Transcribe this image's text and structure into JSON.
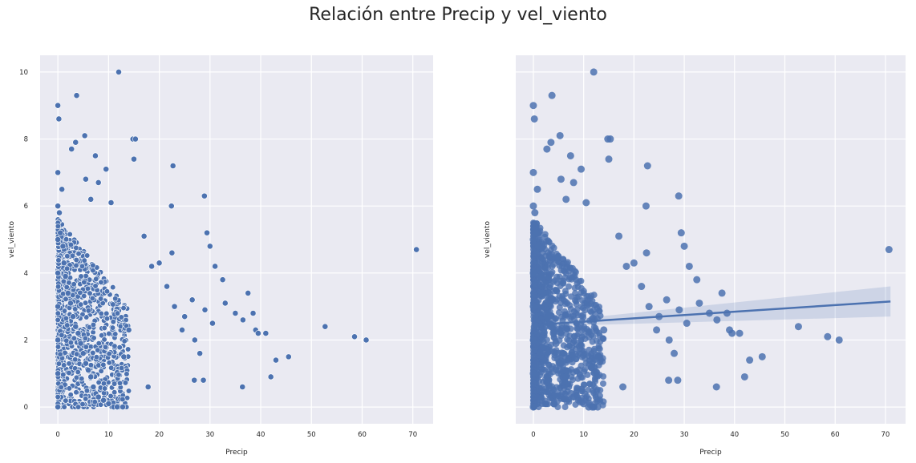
{
  "title": "Relación entre Precip y vel_viento",
  "chart_data": [
    {
      "type": "scatter",
      "xlabel": "Precip",
      "ylabel": "vel_viento",
      "xlim": [
        -3.5,
        74
      ],
      "ylim": [
        -0.5,
        10.5
      ],
      "xticks": [
        0,
        10,
        20,
        30,
        40,
        50,
        60,
        70
      ],
      "yticks": [
        0,
        2,
        4,
        6,
        8,
        10
      ],
      "grid": true,
      "marker_color": "#4c72b0",
      "background": "#eaeaf2",
      "x": [
        0.0,
        0.0,
        0.0,
        0.0,
        0.0,
        0.0,
        0.0,
        0.0,
        0.0,
        0.2,
        0.3,
        0.5,
        0.8,
        1.0,
        1.2,
        1.5,
        2.0,
        2.5,
        3.0,
        3.5,
        4.0,
        4.5,
        5.0,
        5.5,
        6.0,
        6.5,
        7.0,
        7.5,
        8.0,
        9.0,
        10.0,
        11.0,
        12.0,
        12.0,
        13.0,
        14.0,
        14.8,
        15.3,
        15.0,
        3.7,
        5.3,
        7.4,
        2.7,
        3.5,
        5.5,
        8.0,
        9.5,
        6.5,
        10.5,
        22.7,
        22.4,
        28.9,
        29.4,
        30.0,
        22.5,
        17.0,
        18.5,
        20.0,
        21.5,
        23.0,
        24.5,
        25.0,
        26.5,
        27.0,
        28.0,
        29.0,
        30.5,
        31.0,
        32.5,
        33.0,
        35.0,
        36.5,
        37.5,
        38.5,
        39.0,
        39.5,
        41.0,
        42.0,
        43.0,
        45.5,
        52.7,
        58.5,
        60.8,
        70.7,
        36.4,
        28.7,
        26.9,
        17.8,
        12.8,
        11.7
      ],
      "y": [
        0.0,
        1.0,
        2.0,
        3.0,
        4.0,
        5.0,
        6.0,
        7.0,
        9.0,
        8.6,
        5.8,
        5.2,
        6.5,
        4.8,
        4.3,
        3.9,
        3.4,
        3.1,
        2.7,
        2.4,
        2.2,
        1.9,
        1.6,
        1.3,
        1.1,
        0.9,
        0.6,
        0.4,
        0.3,
        0.2,
        0.1,
        0.0,
        0.0,
        10.0,
        1.5,
        2.3,
        8.0,
        8.0,
        7.4,
        9.3,
        8.1,
        7.5,
        7.7,
        7.9,
        6.8,
        6.7,
        7.1,
        6.2,
        6.1,
        7.2,
        6.0,
        6.3,
        5.2,
        4.8,
        4.6,
        5.1,
        4.2,
        4.3,
        3.6,
        3.0,
        2.3,
        2.7,
        3.2,
        2.0,
        1.6,
        2.9,
        2.5,
        4.2,
        3.8,
        3.1,
        2.8,
        2.6,
        3.4,
        2.8,
        2.3,
        2.2,
        2.2,
        0.9,
        1.4,
        1.5,
        2.4,
        2.1,
        2.0,
        4.7,
        0.6,
        0.8,
        0.8,
        0.6,
        0.0,
        0.0
      ]
    },
    {
      "type": "scatter",
      "regression": true,
      "xlabel": "Precip",
      "ylabel": "vel_viento",
      "xlim": [
        -3.5,
        74
      ],
      "ylim": [
        -0.5,
        10.5
      ],
      "xticks": [
        0,
        10,
        20,
        30,
        40,
        50,
        60,
        70
      ],
      "yticks": [
        0,
        2,
        4,
        6,
        8,
        10
      ],
      "grid": true,
      "marker_color": "#4c72b0",
      "background": "#eaeaf2",
      "regression_line": {
        "x": [
          0,
          71
        ],
        "y": [
          2.45,
          3.15
        ]
      }
    }
  ]
}
